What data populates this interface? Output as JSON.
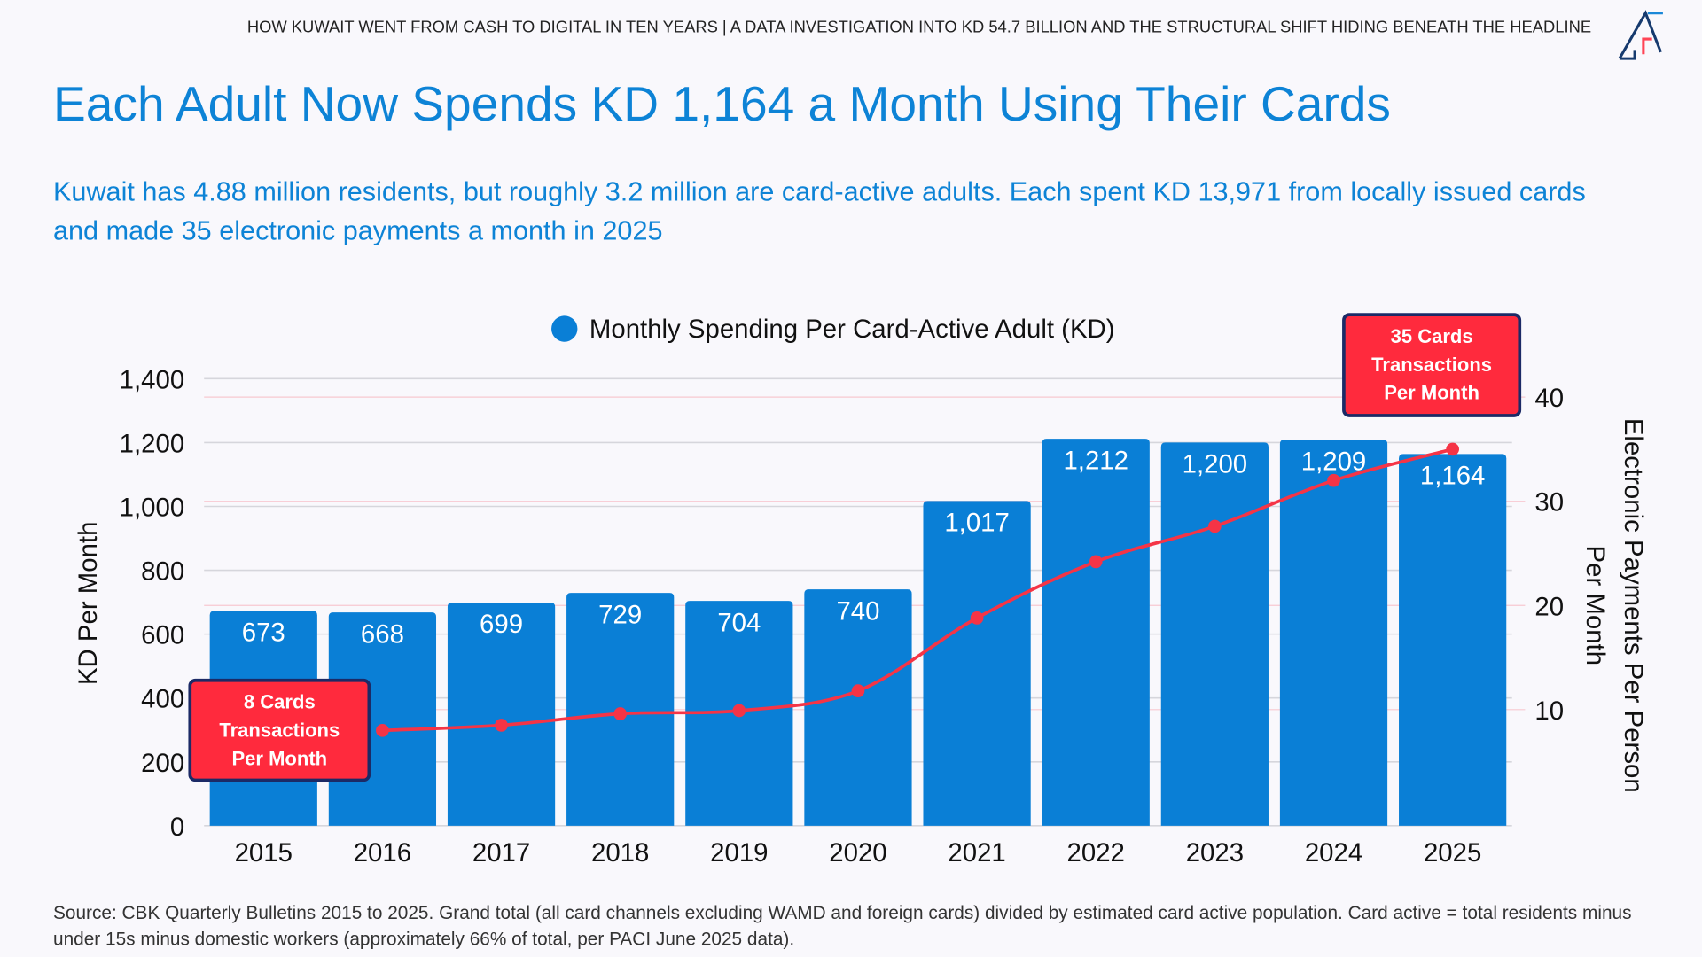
{
  "header": {
    "kicker": "HOW KUWAIT WENT FROM CASH TO DIGITAL IN TEN YEARS | A DATA INVESTIGATION INTO KD 54.7 BILLION AND THE STRUCTURAL SHIFT HIDING BENEATH THE HEADLINE",
    "logo_text": "AB"
  },
  "title": "Each Adult Now Spends KD 1,164 a Month Using Their Cards",
  "subtitle": "Kuwait has 4.88 million residents, but roughly 3.2 million are card-active adults. Each spent KD 13,971 from locally issued cards and made 35 electronic payments a month in 2025",
  "footer": "Source: CBK Quarterly Bulletins 2015 to 2025. Grand total (all card channels excluding WAMD and foreign cards) divided by estimated card active population. Card active = total residents minus under 15s minus domestic workers (approximately 66% of total, per PACI June 2025 data).",
  "colors": {
    "bar": "#0a7fd6",
    "line": "#f53446",
    "title": "#0d83d6",
    "annotation_fill": "#ff2a3d",
    "annotation_border": "#1c2a66"
  },
  "chart_data": {
    "type": "bar+line",
    "categories": [
      "2015",
      "2016",
      "2017",
      "2018",
      "2019",
      "2020",
      "2021",
      "2022",
      "2023",
      "2024",
      "2025"
    ],
    "series": [
      {
        "name": "Monthly Spending Per Card-Active Adult (KD)",
        "type": "bar",
        "axis": "left",
        "values": [
          673,
          668,
          699,
          729,
          704,
          740,
          1017,
          1212,
          1200,
          1209,
          1164
        ]
      },
      {
        "type": "line",
        "axis": "right",
        "values": [
          null,
          8,
          8.5,
          9.6,
          9.9,
          11.8,
          18.8,
          24.2,
          27.6,
          32,
          35
        ]
      }
    ],
    "ylabel": "KD Per Month",
    "y2label": [
      "Electronic Payments Per Person",
      "Per Month"
    ],
    "ylim": [
      0,
      1400
    ],
    "yticks": [
      "0",
      "200",
      "400",
      "600",
      "800",
      "1,000",
      "1,200",
      "1,400"
    ],
    "y2ticks": [
      "10",
      "20",
      "30",
      "40"
    ],
    "legend": "top-center",
    "grid": true,
    "annotations": [
      {
        "lines": [
          "8 Cards",
          "Transactions",
          "Per Month"
        ]
      },
      {
        "lines": [
          "35 Cards",
          "Transactions",
          "Per Month"
        ]
      }
    ]
  }
}
